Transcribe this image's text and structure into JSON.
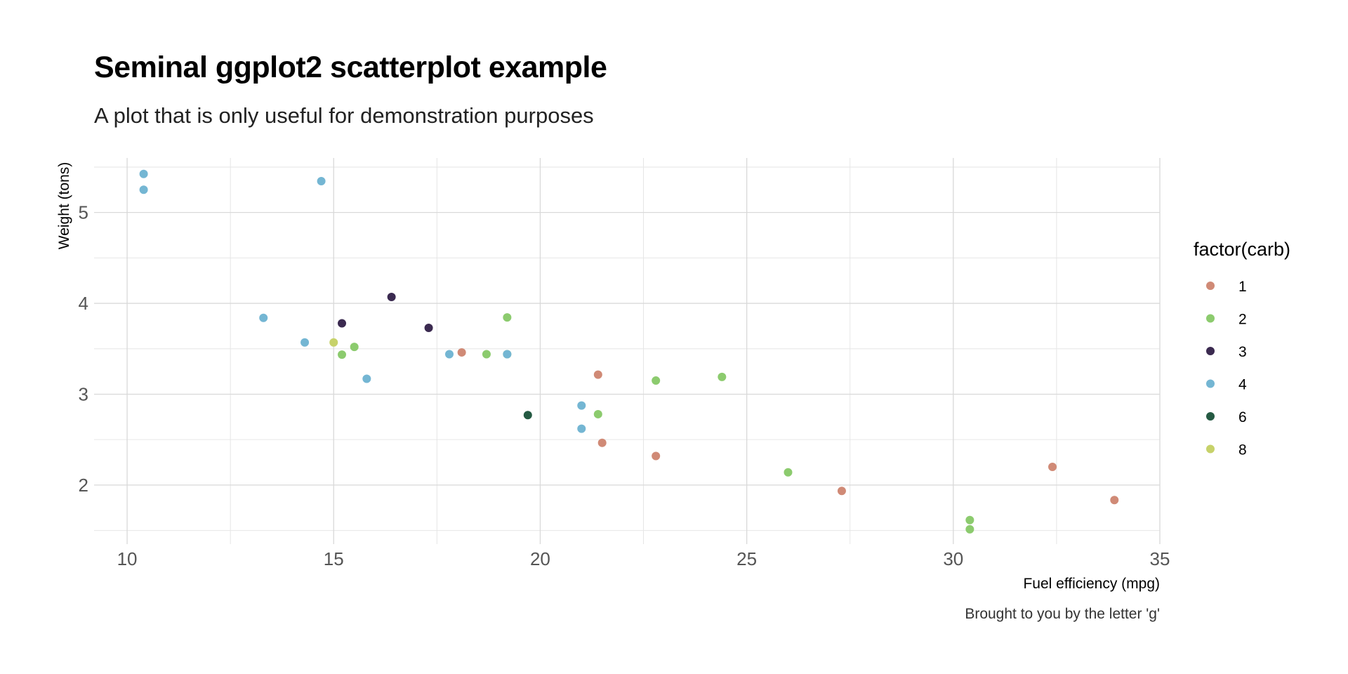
{
  "chart_data": {
    "type": "scatter",
    "title": "Seminal ggplot2 scatterplot example",
    "subtitle": "A plot that is only useful for demonstration purposes",
    "caption": "Brought to you by the letter 'g'",
    "xlabel": "Fuel efficiency (mpg)",
    "ylabel": "Weight (tons)",
    "xlim": [
      9.2,
      35.0
    ],
    "ylim": [
      1.35,
      5.6
    ],
    "xticks": [
      10,
      15,
      20,
      25,
      30,
      35
    ],
    "yticks": [
      2,
      3,
      4,
      5
    ],
    "grid": true,
    "legend": {
      "title": "factor(carb)",
      "position": "right",
      "entries": [
        {
          "label": "1",
          "color": "#D08A76"
        },
        {
          "label": "2",
          "color": "#8CCB6E"
        },
        {
          "label": "3",
          "color": "#3B2A50"
        },
        {
          "label": "4",
          "color": "#74B6D3"
        },
        {
          "label": "6",
          "color": "#255A43"
        },
        {
          "label": "8",
          "color": "#C7D26A"
        }
      ]
    },
    "series": [
      {
        "group": "1",
        "x": [
          22.8,
          21.4,
          18.1,
          32.4,
          33.9,
          21.5,
          27.3
        ],
        "y": [
          2.32,
          3.215,
          3.46,
          2.2,
          1.835,
          2.465,
          1.935
        ]
      },
      {
        "group": "2",
        "x": [
          18.7,
          24.4,
          22.8,
          19.2,
          30.4,
          15.5,
          15.2,
          19.2,
          26.0,
          21.4,
          30.4
        ],
        "y": [
          3.44,
          3.19,
          3.15,
          3.44,
          1.615,
          3.52,
          3.435,
          3.845,
          2.14,
          2.78,
          1.513
        ]
      },
      {
        "group": "3",
        "x": [
          16.4,
          17.3,
          15.2
        ],
        "y": [
          4.07,
          3.73,
          3.78
        ]
      },
      {
        "group": "4",
        "x": [
          21.0,
          21.0,
          14.3,
          19.2,
          17.8,
          10.4,
          10.4,
          14.7,
          13.3,
          15.8
        ],
        "y": [
          2.62,
          2.875,
          3.57,
          3.44,
          3.44,
          5.25,
          5.424,
          5.345,
          3.84,
          3.17
        ]
      },
      {
        "group": "6",
        "x": [
          19.7
        ],
        "y": [
          2.77
        ]
      },
      {
        "group": "8",
        "x": [
          15.0
        ],
        "y": [
          3.57
        ]
      }
    ]
  }
}
